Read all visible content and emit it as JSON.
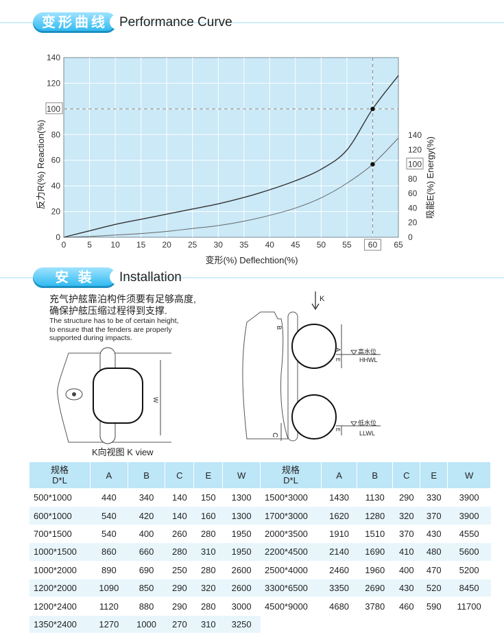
{
  "section_performance": {
    "tab_label": "变形曲线",
    "title": "Performance Curve"
  },
  "section_installation": {
    "tab_label": "安 装",
    "title": "Installation"
  },
  "chart_data": {
    "type": "line",
    "x": [
      0,
      5,
      10,
      15,
      20,
      25,
      30,
      35,
      40,
      45,
      50,
      55,
      60,
      65
    ],
    "xlim": [
      0,
      65
    ],
    "ylim_left": [
      0,
      140
    ],
    "ylim_right": [
      0,
      140
    ],
    "xlabel": "变形(%) Deflechtion(%)",
    "ylabel": "反力R(%) Reaction(%)",
    "ylabel_right": "吸能E(%) Energy(%)",
    "x_ticks": [
      "0",
      "5",
      "10",
      "15",
      "20",
      "25",
      "30",
      "35",
      "40",
      "45",
      "50",
      "55",
      "60",
      "65"
    ],
    "y_ticks_left": [
      "0",
      "20",
      "40",
      "60",
      "80",
      "100",
      "120",
      "140"
    ],
    "y_ticks_right": [
      "0",
      "20",
      "40",
      "60",
      "80",
      "100",
      "120",
      "140"
    ],
    "highlight_x": "60",
    "highlight_y_left": "100",
    "highlight_y_right": "100",
    "series": [
      {
        "values": [
          0,
          5,
          10,
          14,
          18,
          22,
          26,
          31,
          37,
          44,
          53,
          68,
          100,
          126
        ],
        "color": "#333333"
      },
      {
        "values": [
          0,
          1,
          3,
          5,
          8,
          12,
          16,
          22,
          30,
          40,
          54,
          74,
          100,
          136
        ],
        "color": "#666666",
        "axis": "right"
      }
    ],
    "colors": {
      "plot_bg": "#cbe9f7",
      "grid": "#ffffff",
      "guide": "#888888"
    }
  },
  "install_text": {
    "cn_line1": "充气护舷靠泊构件须要有足够高度,",
    "cn_line2": "确保护舷压缩过程得到支撑.",
    "en_line1": "The structure has to be of certain height,",
    "en_line2": "to ensure that the fenders are properly",
    "en_line3": "supported during impacts."
  },
  "diagram": {
    "k_view_label": "K向视图 K view",
    "w_label": "W",
    "k_arrow_label": "K",
    "a_label": "A",
    "b_label": "B",
    "e_label": "E",
    "c_label": "C",
    "hhwl_cn": "高水位",
    "hhwl_en": "HHWL",
    "llwl_cn": "低水位",
    "llwl_en": "LLWL"
  },
  "table": {
    "headers": [
      "规格\nD*L",
      "A",
      "B",
      "C",
      "E",
      "W"
    ],
    "left_rows": [
      [
        "500*1000",
        "440",
        "340",
        "140",
        "150",
        "1300"
      ],
      [
        "600*1000",
        "540",
        "420",
        "140",
        "160",
        "1300"
      ],
      [
        "700*1500",
        "540",
        "400",
        "260",
        "280",
        "1950"
      ],
      [
        "1000*1500",
        "860",
        "660",
        "280",
        "310",
        "1950"
      ],
      [
        "1000*2000",
        "890",
        "690",
        "250",
        "280",
        "2600"
      ],
      [
        "1200*2000",
        "1090",
        "850",
        "290",
        "320",
        "2600"
      ],
      [
        "1200*2400",
        "1120",
        "880",
        "290",
        "280",
        "3000"
      ],
      [
        "1350*2400",
        "1270",
        "1000",
        "270",
        "310",
        "3250"
      ]
    ],
    "right_rows": [
      [
        "1500*3000",
        "1430",
        "1130",
        "290",
        "330",
        "3900"
      ],
      [
        "1700*3000",
        "1620",
        "1280",
        "320",
        "370",
        "3900"
      ],
      [
        "2000*3500",
        "1910",
        "1510",
        "370",
        "430",
        "4550"
      ],
      [
        "2200*4500",
        "2140",
        "1690",
        "410",
        "480",
        "5600"
      ],
      [
        "2500*4000",
        "2460",
        "1960",
        "400",
        "470",
        "5200"
      ],
      [
        "3300*6500",
        "3350",
        "2690",
        "430",
        "520",
        "8450"
      ],
      [
        "4500*9000",
        "4680",
        "3780",
        "460",
        "590",
        "11700"
      ]
    ]
  }
}
